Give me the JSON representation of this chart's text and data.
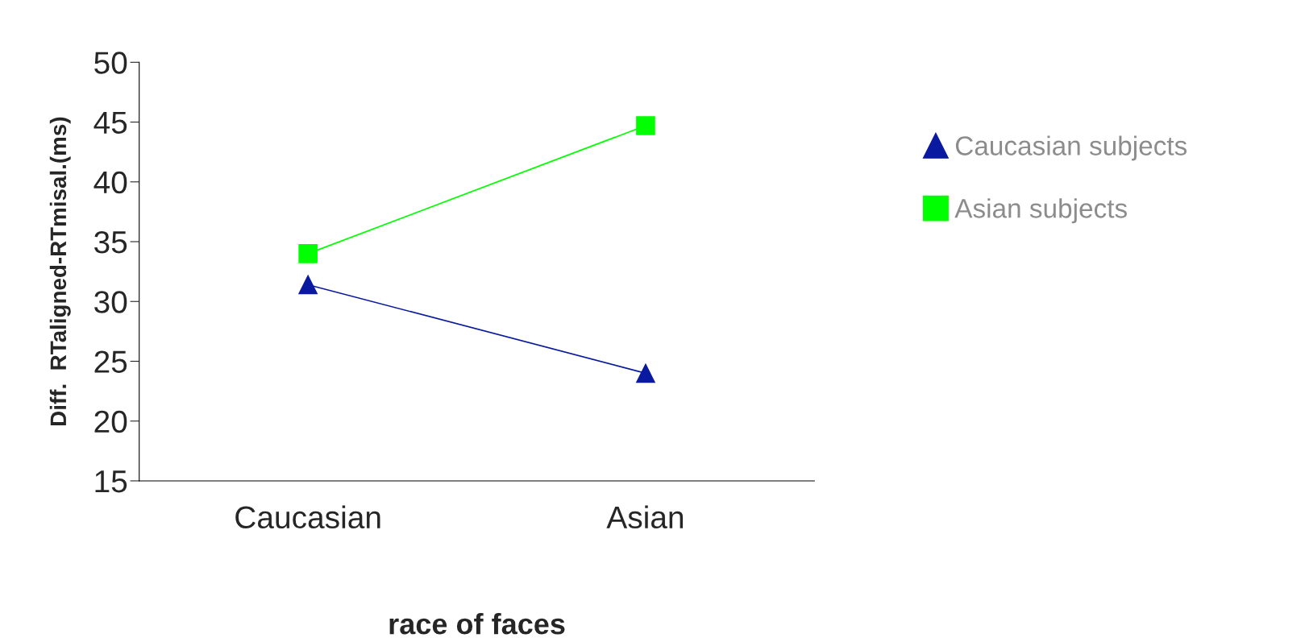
{
  "chart_data": {
    "type": "line",
    "xlabel": "race of faces",
    "ylabel": "Diff.  RTaligned-RTmisal.(ms)",
    "categories": [
      "Caucasian",
      "Asian"
    ],
    "series": [
      {
        "name": "Caucasian subjects",
        "color": "#0a1aa0",
        "marker": "triangle",
        "values": [
          31.4,
          24.0
        ]
      },
      {
        "name": "Asian subjects",
        "color": "#00ff00",
        "marker": "square",
        "values": [
          34.0,
          44.7
        ]
      }
    ],
    "ylim": [
      15,
      50
    ],
    "yticks": [
      15,
      20,
      25,
      30,
      35,
      40,
      45,
      50
    ],
    "grid": false,
    "legend": "right",
    "line_style": "solid"
  }
}
